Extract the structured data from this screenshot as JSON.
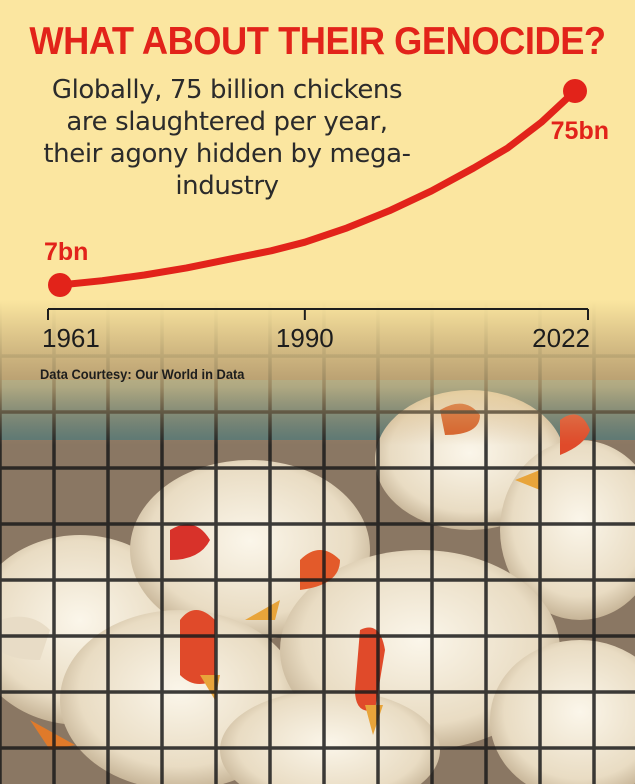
{
  "headline": "WHAT ABOUT THEIR GENOCIDE?",
  "subtitle_lines": [
    "Globally, 75 billion chickens",
    "are slaughtered per year,",
    "their agony hidden by mega-",
    "industry"
  ],
  "source": "Data Courtesy: Our World in Data",
  "colors": {
    "accent_red": "#e2231a",
    "background": "#fbe6a0",
    "text": "#2b2b2b"
  },
  "chart_data": {
    "type": "line",
    "title": "",
    "xlabel": "",
    "ylabel": "",
    "x_ticks": [
      "1961",
      "1990",
      "2022"
    ],
    "xlim": [
      1961,
      2022
    ],
    "ylim": [
      7,
      75
    ],
    "series": [
      {
        "x": [
          1961,
          1966,
          1971,
          1976,
          1981,
          1986,
          1990,
          1995,
          2000,
          2005,
          2010,
          2014,
          2018,
          2022
        ],
        "y": [
          7,
          8.5,
          10.5,
          13,
          16,
          19,
          22,
          27,
          33,
          40,
          48,
          55,
          64,
          75
        ]
      }
    ],
    "annotations": [
      {
        "text": "7bn",
        "x": 1961,
        "y": 7
      },
      {
        "text": "75bn",
        "x": 2022,
        "y": 75
      }
    ],
    "grid": false,
    "legend": "none"
  }
}
